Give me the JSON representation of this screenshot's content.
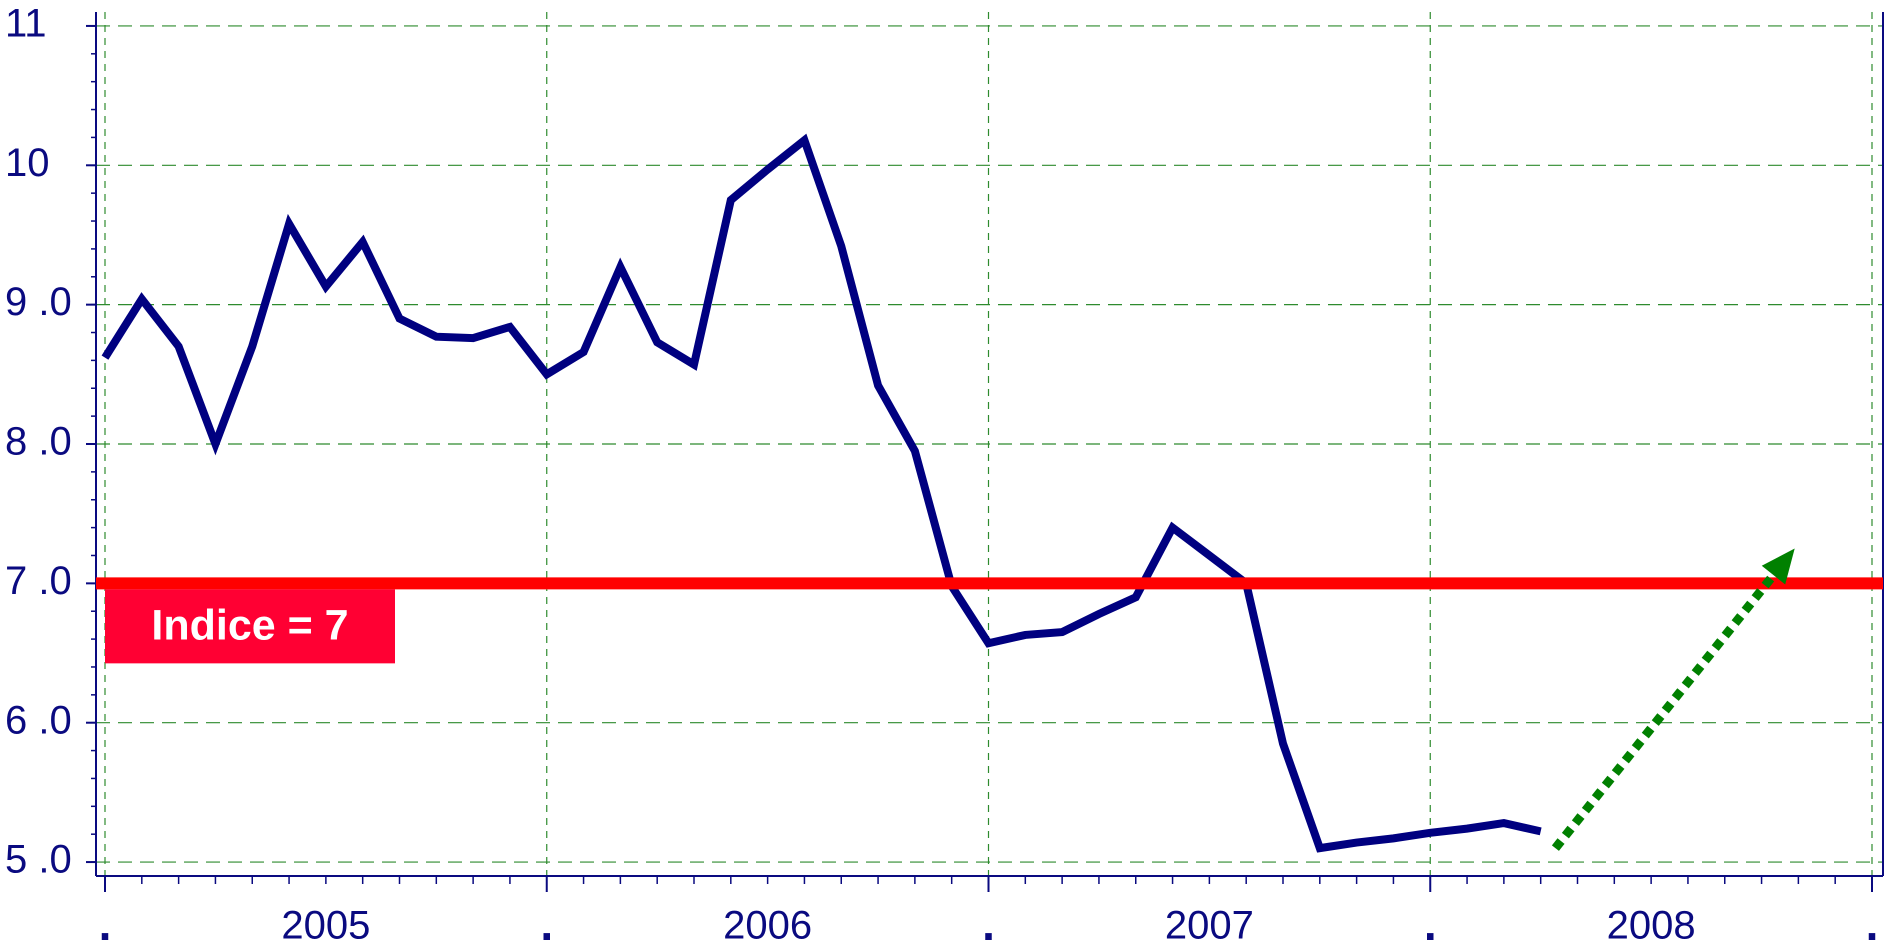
{
  "chart_data": {
    "type": "line",
    "x": [
      0,
      1,
      2,
      3,
      4,
      5,
      6,
      7,
      8,
      9,
      10,
      11,
      12,
      13,
      14,
      15,
      16,
      17,
      18,
      19,
      20,
      21,
      22,
      23,
      24,
      25,
      26,
      27,
      28,
      29,
      30,
      31,
      32,
      33,
      34,
      35,
      36,
      37,
      38,
      39
    ],
    "series": [
      {
        "name": "Indice",
        "color": "#000080",
        "values": [
          8.62,
          9.04,
          8.7,
          8.0,
          8.7,
          9.58,
          9.13,
          9.45,
          8.9,
          8.77,
          8.76,
          8.84,
          8.5,
          8.66,
          9.27,
          8.73,
          8.57,
          9.75,
          9.97,
          10.18,
          9.42,
          8.42,
          7.95,
          6.98,
          6.57,
          6.63,
          6.65,
          6.78,
          6.9,
          7.4,
          7.2,
          7.0,
          5.85,
          5.1,
          5.14,
          5.17,
          5.21,
          5.24,
          5.28,
          5.22
        ]
      }
    ],
    "xlim": [
      0,
      48
    ],
    "xticks": [
      {
        "value": 0,
        "label": "."
      },
      {
        "value": 6,
        "label": "2005"
      },
      {
        "value": 12,
        "label": "."
      },
      {
        "value": 18,
        "label": "2006"
      },
      {
        "value": 24,
        "label": "."
      },
      {
        "value": 30,
        "label": "2007"
      },
      {
        "value": 36,
        "label": "."
      },
      {
        "value": 42,
        "label": "2008"
      },
      {
        "value": 48,
        "label": "."
      }
    ],
    "ylim": [
      4.9,
      11.1
    ],
    "yticks": [
      {
        "value": 5,
        "label": "5 .0"
      },
      {
        "value": 6,
        "label": "6 .0"
      },
      {
        "value": 7,
        "label": "7 .0"
      },
      {
        "value": 8,
        "label": "8 .0"
      },
      {
        "value": 9,
        "label": "9 .0"
      },
      10,
      11
    ],
    "grid": true,
    "hline": {
      "value": 7,
      "label": "Indice = 7",
      "color": "#ff0000"
    },
    "arrow": {
      "from": [
        39.4,
        5.1
      ],
      "to": [
        45.9,
        7.25
      ],
      "color": "#008000"
    }
  }
}
